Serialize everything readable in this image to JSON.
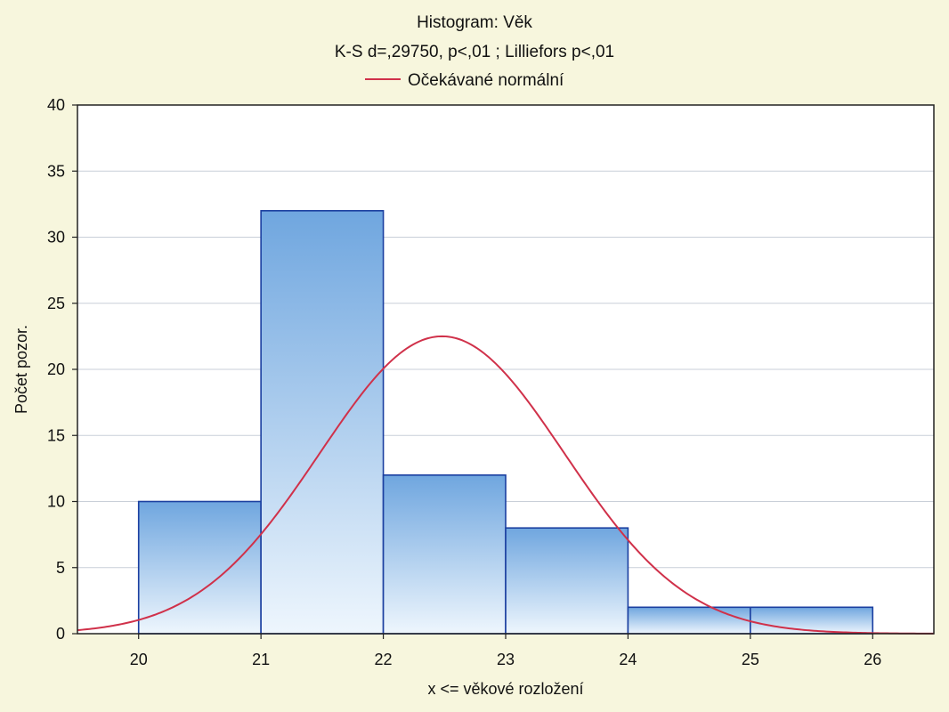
{
  "chart_data": {
    "type": "bar",
    "title": "Histogram: Věk",
    "subtitle": "K-S d=,29750, p<,01 ; Lilliefors p<,01",
    "legend": [
      {
        "label": "Očekávané normální",
        "color": "#d0314a"
      }
    ],
    "legend_position": "top-center",
    "xlabel": "x <= věkové rozložení",
    "ylabel": "Počet pozor.",
    "xlim": [
      19.5,
      26.5
    ],
    "ylim": [
      0,
      40
    ],
    "x_ticks": [
      20,
      21,
      22,
      23,
      24,
      25,
      26
    ],
    "y_ticks": [
      0,
      5,
      10,
      15,
      20,
      25,
      30,
      35,
      40
    ],
    "grid": true,
    "bins": [
      {
        "from": 20,
        "to": 21,
        "count": 10
      },
      {
        "from": 21,
        "to": 22,
        "count": 32
      },
      {
        "from": 22,
        "to": 23,
        "count": 12
      },
      {
        "from": 23,
        "to": 24,
        "count": 8
      },
      {
        "from": 24,
        "to": 25,
        "count": 2
      },
      {
        "from": 25,
        "to": 26,
        "count": 2
      }
    ],
    "expected_normal": {
      "name": "Očekávané normální",
      "mean": 22.48,
      "sd": 1.0,
      "peak": 22.5
    },
    "colors": {
      "bar_top": "#6fa6df",
      "bar_bottom": "#eef6fd",
      "bar_stroke": "#1b3fa0",
      "curve": "#d0314a",
      "grid": "#c9cfd8",
      "plot_background": "#ffffff"
    }
  }
}
